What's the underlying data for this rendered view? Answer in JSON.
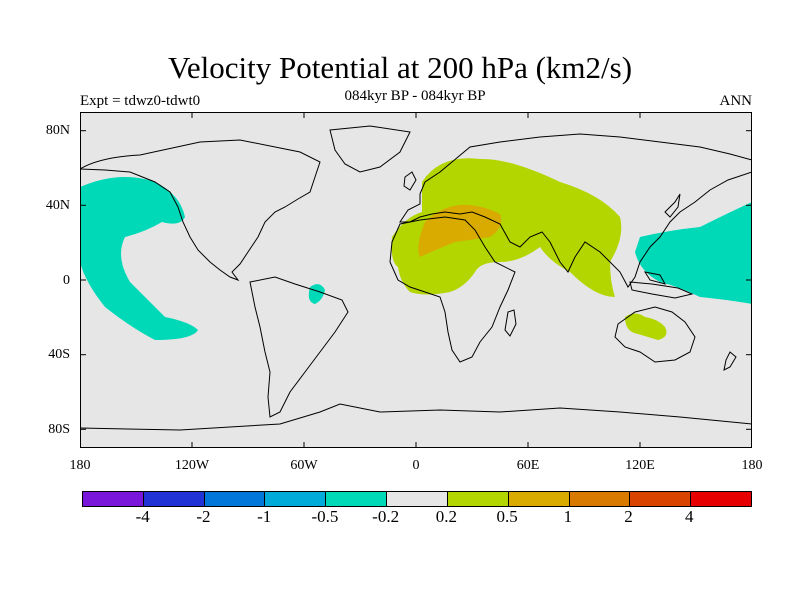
{
  "header": {
    "title": "Velocity Potential at 200 hPa (km2/s)",
    "subtitle": "084kyr BP - 084kyr BP",
    "left_label": "Expt = tdwz0-tdwt0",
    "right_label": "ANN"
  },
  "map": {
    "projection": "cylindrical equidistant",
    "lon_range": [
      -180,
      180
    ],
    "lat_range": [
      -90,
      90
    ],
    "background_color": "#e6e6e6",
    "y_ticks": [
      "80N",
      "40N",
      "0",
      "40S",
      "80S"
    ],
    "x_ticks": [
      "180",
      "120W",
      "60W",
      "0",
      "60E",
      "120E",
      "180"
    ],
    "regions": [
      {
        "name": "positive anomaly (0.2 to 0.5) over Africa, Europe and Asia",
        "level": "0.2 to 0.5",
        "color": "#b3d600"
      },
      {
        "name": "positive anomaly (0.5 to 1) over North Africa and Middle East",
        "level": "0.5 to 1",
        "color": "#d9ab00"
      },
      {
        "name": "positive anomaly (0.2 to 0.5) over northern Australia",
        "level": "0.2 to 0.5",
        "color": "#b3d600"
      },
      {
        "name": "negative anomaly (-0.5 to -0.2) over eastern Pacific",
        "level": "-0.5 to -0.2",
        "color": "#00d9b8"
      },
      {
        "name": "negative anomaly (-0.5 to -0.2) over western Pacific",
        "level": "-0.5 to -0.2",
        "color": "#00d9b8"
      },
      {
        "name": "negative anomaly (-0.5 to -0.2) over South America",
        "level": "-0.5 to -0.2",
        "color": "#00d9b8"
      }
    ]
  },
  "legend": {
    "colors": [
      "#7a16d9",
      "#2233d6",
      "#0077d9",
      "#00aad9",
      "#00d9b8",
      "#e6e6e6",
      "#b3d600",
      "#d9ab00",
      "#d97a00",
      "#d94400",
      "#e60000"
    ],
    "labels": [
      "-4",
      "-2",
      "-1",
      "-0.5",
      "-0.2",
      "0.2",
      "0.5",
      "1",
      "2",
      "4"
    ]
  }
}
